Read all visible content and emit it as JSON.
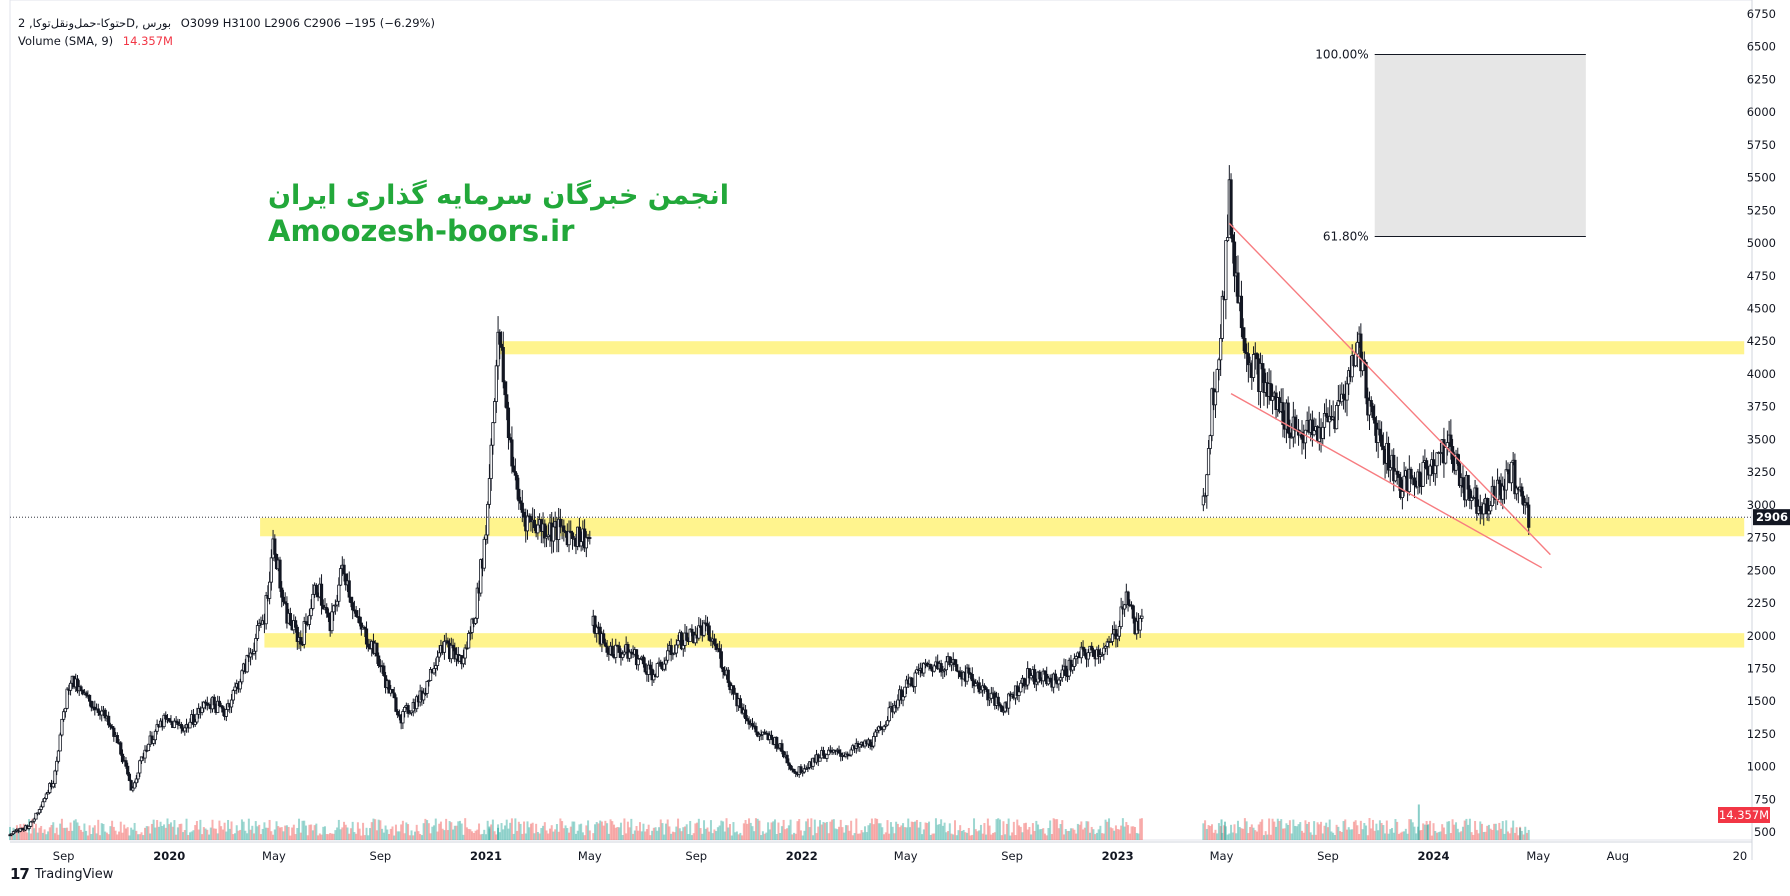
{
  "legend": {
    "symbol": "حتوکا-حمل‌ونقل‌توکا, 2D, بورس",
    "ohlc": "O3099  H3100  L2906  C2906  −195 (−6.29%)",
    "volume_label": "Volume (SMA, 9)",
    "volume_value": "14.357M"
  },
  "watermark": {
    "persian": "انجمن خبرگان سرمایه گذاری ایران",
    "site": "Amoozesh-boors.ir"
  },
  "branding": {
    "logo_mark": "17",
    "name": "TradingView"
  },
  "colors": {
    "zone": "#fff27a",
    "trendline": "#f77c80",
    "candle": "#131722",
    "fib_fill": "#e6e6e6",
    "vol_up": "#26a69a",
    "vol_down": "#ef5350",
    "price_tag": "#131722",
    "volume_tag": "#f23645"
  },
  "chart_data": {
    "type": "candlestick",
    "timeframe": "2D",
    "y_ticks": [
      500,
      750,
      1000,
      1250,
      1500,
      1750,
      2000,
      2250,
      2500,
      2750,
      3000,
      3250,
      3500,
      3750,
      4000,
      4250,
      4500,
      4750,
      5000,
      5250,
      5500,
      5750,
      6000,
      6250,
      6500,
      6750
    ],
    "ylim": [
      440,
      6780
    ],
    "x_range": [
      "2019-07-01",
      "2025-01-03"
    ],
    "x_ticks": [
      {
        "label": "Sep",
        "date": "2019-09-01",
        "bold": false
      },
      {
        "label": "2020",
        "date": "2020-01-01",
        "bold": true
      },
      {
        "label": "May",
        "date": "2020-05-01",
        "bold": false
      },
      {
        "label": "Sep",
        "date": "2020-09-01",
        "bold": false
      },
      {
        "label": "2021",
        "date": "2021-01-01",
        "bold": true
      },
      {
        "label": "May",
        "date": "2021-05-01",
        "bold": false
      },
      {
        "label": "Sep",
        "date": "2021-09-01",
        "bold": false
      },
      {
        "label": "2022",
        "date": "2022-01-01",
        "bold": true
      },
      {
        "label": "May",
        "date": "2022-05-01",
        "bold": false
      },
      {
        "label": "Sep",
        "date": "2022-09-01",
        "bold": false
      },
      {
        "label": "2023",
        "date": "2023-01-01",
        "bold": true
      },
      {
        "label": "May",
        "date": "2023-05-01",
        "bold": false
      },
      {
        "label": "Sep",
        "date": "2023-09-01",
        "bold": false
      },
      {
        "label": "2024",
        "date": "2024-01-01",
        "bold": true
      },
      {
        "label": "May",
        "date": "2024-05-01",
        "bold": false
      },
      {
        "label": "Aug",
        "date": "2024-08-01",
        "bold": false
      },
      {
        "label": "20",
        "date": "2024-12-20",
        "bold": false
      }
    ],
    "last_price": 2906,
    "last_price_label": "2906",
    "last_volume_label": "14.357M",
    "price_path": [
      [
        "2019-07-01",
        480
      ],
      [
        "2019-07-25",
        560
      ],
      [
        "2019-08-20",
        900
      ],
      [
        "2019-09-01",
        1400
      ],
      [
        "2019-09-08",
        1680
      ],
      [
        "2019-09-22",
        1550
      ],
      [
        "2019-10-15",
        1420
      ],
      [
        "2019-11-05",
        1150
      ],
      [
        "2019-11-18",
        820
      ],
      [
        "2019-12-05",
        1150
      ],
      [
        "2019-12-25",
        1350
      ],
      [
        "2020-01-20",
        1300
      ],
      [
        "2020-02-15",
        1500
      ],
      [
        "2020-03-05",
        1420
      ],
      [
        "2020-03-25",
        1700
      ],
      [
        "2020-04-20",
        2150
      ],
      [
        "2020-05-01",
        2750
      ],
      [
        "2020-05-12",
        2200
      ],
      [
        "2020-06-01",
        1950
      ],
      [
        "2020-06-20",
        2400
      ],
      [
        "2020-07-05",
        2050
      ],
      [
        "2020-07-20",
        2550
      ],
      [
        "2020-08-05",
        2100
      ],
      [
        "2020-08-25",
        1900
      ],
      [
        "2020-09-10",
        1600
      ],
      [
        "2020-09-25",
        1380
      ],
      [
        "2020-10-20",
        1550
      ],
      [
        "2020-11-10",
        1950
      ],
      [
        "2020-12-05",
        1800
      ],
      [
        "2020-12-20",
        2200
      ],
      [
        "2021-01-01",
        2800
      ],
      [
        "2021-01-10",
        3800
      ],
      [
        "2021-01-16",
        4300
      ],
      [
        "2021-01-25",
        3700
      ],
      [
        "2021-02-05",
        3100
      ],
      [
        "2021-02-15",
        2900
      ],
      [
        "2021-03-10",
        2820
      ],
      [
        "2021-04-10",
        2780
      ],
      [
        "2021-05-01",
        2740
      ]
    ],
    "price_path_2": [
      [
        "2021-05-05",
        2080
      ],
      [
        "2021-05-20",
        1900
      ],
      [
        "2021-06-20",
        1860
      ],
      [
        "2021-07-15",
        1700
      ],
      [
        "2021-08-10",
        1950
      ],
      [
        "2021-09-10",
        2050
      ],
      [
        "2021-09-25",
        1900
      ],
      [
        "2021-10-15",
        1550
      ],
      [
        "2021-11-10",
        1250
      ],
      [
        "2021-12-01",
        1200
      ],
      [
        "2021-12-25",
        950
      ],
      [
        "2022-01-25",
        1100
      ],
      [
        "2022-02-20",
        1100
      ],
      [
        "2022-03-25",
        1200
      ],
      [
        "2022-04-25",
        1550
      ],
      [
        "2022-05-20",
        1750
      ],
      [
        "2022-06-20",
        1800
      ],
      [
        "2022-07-20",
        1650
      ],
      [
        "2022-08-20",
        1450
      ],
      [
        "2022-09-20",
        1700
      ],
      [
        "2022-10-20",
        1650
      ],
      [
        "2022-11-20",
        1850
      ],
      [
        "2022-12-20",
        1900
      ],
      [
        "2023-01-01",
        2050
      ],
      [
        "2023-01-10",
        2350
      ],
      [
        "2023-01-22",
        2050
      ],
      [
        "2023-01-30",
        2100
      ]
    ],
    "price_path_3": [
      [
        "2023-04-10",
        3000
      ],
      [
        "2023-04-20",
        3800
      ],
      [
        "2023-04-28",
        4200
      ],
      [
        "2023-05-04",
        4700
      ],
      [
        "2023-05-10",
        5300
      ],
      [
        "2023-05-20",
        4600
      ],
      [
        "2023-06-01",
        4150
      ],
      [
        "2023-06-20",
        3900
      ],
      [
        "2023-07-10",
        3700
      ],
      [
        "2023-08-01",
        3550
      ],
      [
        "2023-08-20",
        3550
      ],
      [
        "2023-09-10",
        3700
      ],
      [
        "2023-09-25",
        3950
      ],
      [
        "2023-10-05",
        4300
      ],
      [
        "2023-10-20",
        3700
      ],
      [
        "2023-11-10",
        3350
      ],
      [
        "2023-11-25",
        3150
      ],
      [
        "2023-12-15",
        3200
      ],
      [
        "2024-01-01",
        3350
      ],
      [
        "2024-01-20",
        3450
      ],
      [
        "2024-02-05",
        3150
      ],
      [
        "2024-02-25",
        3000
      ],
      [
        "2024-03-15",
        3100
      ],
      [
        "2024-04-01",
        3250
      ],
      [
        "2024-04-12",
        3050
      ],
      [
        "2024-04-20",
        2906
      ]
    ],
    "horizontal_zones": [
      {
        "date_from": "2021-01-15",
        "date_to": "2024-12-25",
        "price_low": 4150,
        "price_high": 4250
      },
      {
        "date_from": "2020-04-15",
        "date_to": "2024-12-25",
        "price_low": 2760,
        "price_high": 2900
      },
      {
        "date_from": "2020-04-20",
        "date_to": "2024-12-25",
        "price_low": 1910,
        "price_high": 2020
      }
    ],
    "trendlines": [
      {
        "from": [
          "2023-05-10",
          5150
        ],
        "to": [
          "2024-05-15",
          2620
        ]
      },
      {
        "from": [
          "2023-05-12",
          3850
        ],
        "to": [
          "2024-05-05",
          2520
        ]
      }
    ],
    "fib_retracement": {
      "date_from": "2023-10-25",
      "date_to": "2024-06-25",
      "price_top": 6440,
      "price_bottom": 5050,
      "levels": [
        {
          "label": "100.00%",
          "price": 6440
        },
        {
          "label": "61.80%",
          "price": 5050
        }
      ]
    },
    "volume_spikes": [
      [
        "2021-01-05",
        720
      ],
      [
        "2021-01-15",
        650
      ],
      [
        "2023-05-01",
        1100
      ],
      [
        "2023-05-05",
        980
      ],
      [
        "2023-12-15",
        1900
      ],
      [
        "2023-12-25",
        800
      ],
      [
        "2024-04-10",
        650
      ]
    ]
  }
}
